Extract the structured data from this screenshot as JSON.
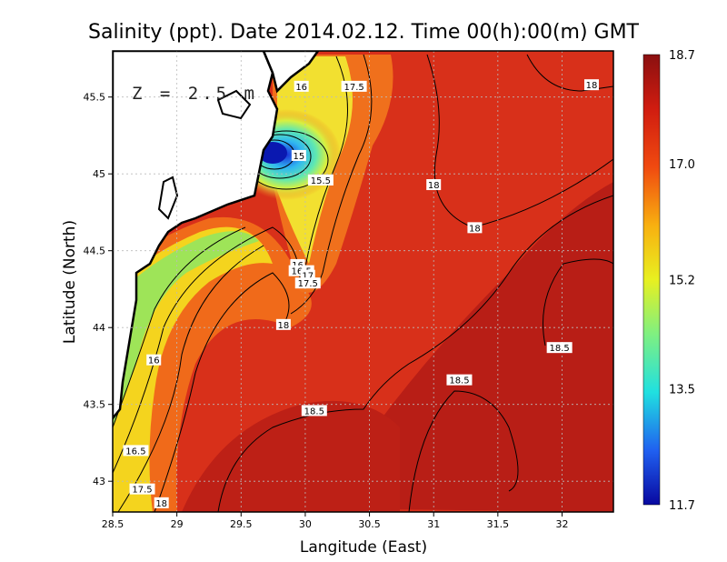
{
  "chart_data": {
    "type": "heatmap",
    "title": "Salinity (ppt). Date 2014.02.12. Time 00(h):00(m) GMT",
    "xlabel": "Langitude (East)",
    "ylabel": "Latitude (North)",
    "xlim": [
      28.5,
      32.4
    ],
    "ylim": [
      42.8,
      45.8
    ],
    "x_ticks": [
      "28.5",
      "29",
      "29.5",
      "30",
      "30.5",
      "31",
      "31.5",
      "32"
    ],
    "x_tick_values": [
      28.5,
      29,
      29.5,
      30,
      30.5,
      31,
      31.5,
      32
    ],
    "y_ticks": [
      "43",
      "43.5",
      "44",
      "44.5",
      "45",
      "45.5"
    ],
    "y_tick_values": [
      43,
      43.5,
      44,
      44.5,
      45,
      45.5
    ],
    "grid": true,
    "depth_annotation": "Z = 2.5 m",
    "colorbar": {
      "min": 11.7,
      "max": 18.7,
      "labels": [
        "18.7",
        "17.0",
        "15.2",
        "13.5",
        "11.7"
      ],
      "label_values": [
        18.7,
        17.0,
        15.2,
        13.5,
        11.7
      ]
    },
    "contour_labels": [
      {
        "text": "16",
        "lon": 29.97,
        "lat": 45.57
      },
      {
        "text": "17.5",
        "lon": 30.38,
        "lat": 45.57
      },
      {
        "text": "18",
        "lon": 32.23,
        "lat": 45.58
      },
      {
        "text": "15",
        "lon": 29.95,
        "lat": 45.12
      },
      {
        "text": "15.5",
        "lon": 30.12,
        "lat": 44.96
      },
      {
        "text": "18",
        "lon": 31.0,
        "lat": 44.93
      },
      {
        "text": "18",
        "lon": 31.32,
        "lat": 44.65
      },
      {
        "text": "16",
        "lon": 29.94,
        "lat": 44.41
      },
      {
        "text": "16.5",
        "lon": 29.97,
        "lat": 44.37
      },
      {
        "text": "17",
        "lon": 30.02,
        "lat": 44.34
      },
      {
        "text": "17.5",
        "lon": 30.02,
        "lat": 44.29
      },
      {
        "text": "18",
        "lon": 29.83,
        "lat": 44.02
      },
      {
        "text": "16",
        "lon": 28.82,
        "lat": 43.79
      },
      {
        "text": "18.5",
        "lon": 31.98,
        "lat": 43.87
      },
      {
        "text": "18.5",
        "lon": 31.2,
        "lat": 43.66
      },
      {
        "text": "18.5",
        "lon": 30.07,
        "lat": 43.46
      },
      {
        "text": "16.5",
        "lon": 28.68,
        "lat": 43.2
      },
      {
        "text": "17.5",
        "lon": 28.73,
        "lat": 42.95
      },
      {
        "text": "18",
        "lon": 28.88,
        "lat": 42.86
      }
    ]
  },
  "colors": {
    "open_sea": "#d42a10",
    "deep_red": "#b01c14",
    "orange": "#f06418",
    "yellow": "#f4e41c",
    "green": "#8ee460",
    "cyan": "#3ee0d8",
    "blue": "#2244e0",
    "dark_blue": "#0a10a0",
    "land": "#ffffff",
    "coast": "#000000"
  }
}
